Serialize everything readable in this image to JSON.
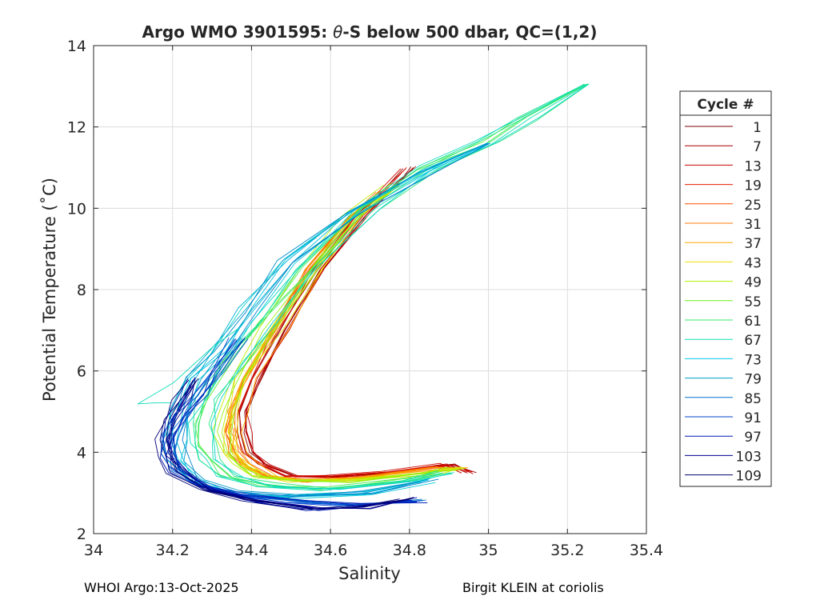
{
  "chart_data": {
    "type": "line",
    "title": "Argo WMO 3901595: θ-S below 500 dbar,  QC=(1,2)",
    "title_parts": {
      "pre": "Argo WMO 3901595: ",
      "theta": "θ",
      "post": "-S below 500 dbar,  QC=(1,2)"
    },
    "xlabel": "Salinity",
    "ylabel": "Potential Temperature (˚C)",
    "xlim": [
      34,
      35.4
    ],
    "ylim": [
      2,
      14
    ],
    "xticks": [
      34,
      34.2,
      34.4,
      34.6,
      34.8,
      35,
      35.2,
      35.4
    ],
    "xtick_labels": [
      "34",
      "34.2",
      "34.4",
      "34.6",
      "34.8",
      "35",
      "35.2",
      "35.4"
    ],
    "yticks": [
      2,
      4,
      6,
      8,
      10,
      12,
      14
    ],
    "ytick_labels": [
      "2",
      "4",
      "6",
      "8",
      "10",
      "12",
      "14"
    ],
    "grid": true,
    "legend": {
      "title": "Cycle #",
      "placement": "outside-right",
      "entries": [
        {
          "label": "1",
          "color": "#7f0000"
        },
        {
          "label": "7",
          "color": "#a50000"
        },
        {
          "label": "13",
          "color": "#c80000"
        },
        {
          "label": "19",
          "color": "#e61e00"
        },
        {
          "label": "25",
          "color": "#ff4a00"
        },
        {
          "label": "31",
          "color": "#ff7a00"
        },
        {
          "label": "37",
          "color": "#ffaa00"
        },
        {
          "label": "43",
          "color": "#f0e000"
        },
        {
          "label": "49",
          "color": "#b4f000"
        },
        {
          "label": "55",
          "color": "#70f020"
        },
        {
          "label": "61",
          "color": "#30e870"
        },
        {
          "label": "67",
          "color": "#10e0b0"
        },
        {
          "label": "73",
          "color": "#00c8e8"
        },
        {
          "label": "79",
          "color": "#00a0c8"
        },
        {
          "label": "85",
          "color": "#0070d0"
        },
        {
          "label": "91",
          "color": "#0040d0"
        },
        {
          "label": "97",
          "color": "#0018b0"
        },
        {
          "label": "103",
          "color": "#000090"
        },
        {
          "label": "109",
          "color": "#000070"
        }
      ]
    },
    "series": [
      {
        "group": "red",
        "points": [
          [
            34.95,
            3.5
          ],
          [
            34.9,
            3.7
          ],
          [
            34.75,
            3.5
          ],
          [
            34.6,
            3.4
          ],
          [
            34.5,
            3.4
          ],
          [
            34.43,
            3.7
          ],
          [
            34.395,
            4.0
          ],
          [
            34.38,
            4.5
          ],
          [
            34.38,
            5.0
          ],
          [
            34.41,
            5.8
          ],
          [
            34.48,
            7.0
          ],
          [
            34.57,
            8.5
          ],
          [
            34.68,
            9.8
          ],
          [
            34.75,
            10.5
          ],
          [
            34.8,
            11.0
          ]
        ]
      },
      {
        "group": "orange",
        "points": [
          [
            34.94,
            3.6
          ],
          [
            34.88,
            3.6
          ],
          [
            34.7,
            3.4
          ],
          [
            34.55,
            3.3
          ],
          [
            34.45,
            3.4
          ],
          [
            34.4,
            3.7
          ],
          [
            34.37,
            4.0
          ],
          [
            34.36,
            4.5
          ],
          [
            34.365,
            5.0
          ],
          [
            34.4,
            5.8
          ],
          [
            34.47,
            7.0
          ],
          [
            34.56,
            8.5
          ],
          [
            34.67,
            9.8
          ],
          [
            34.74,
            10.4
          ]
        ]
      },
      {
        "group": "yellow",
        "points": [
          [
            34.92,
            3.6
          ],
          [
            34.85,
            3.5
          ],
          [
            34.65,
            3.3
          ],
          [
            34.5,
            3.3
          ],
          [
            34.42,
            3.4
          ],
          [
            34.37,
            3.7
          ],
          [
            34.345,
            4.0
          ],
          [
            34.335,
            4.5
          ],
          [
            34.34,
            5.0
          ],
          [
            34.37,
            5.8
          ],
          [
            34.45,
            7.0
          ],
          [
            34.55,
            8.5
          ],
          [
            34.66,
            9.8
          ],
          [
            34.76,
            10.6
          ]
        ]
      },
      {
        "group": "green",
        "points": [
          [
            34.9,
            3.5
          ],
          [
            34.8,
            3.3
          ],
          [
            34.6,
            3.1
          ],
          [
            34.45,
            3.2
          ],
          [
            34.35,
            3.4
          ],
          [
            34.3,
            3.8
          ],
          [
            34.28,
            4.2
          ],
          [
            34.28,
            4.7
          ],
          [
            34.3,
            5.3
          ],
          [
            34.36,
            6.2
          ],
          [
            34.44,
            7.2
          ],
          [
            34.55,
            8.5
          ],
          [
            34.7,
            10.0
          ],
          [
            34.85,
            11.0
          ],
          [
            35.0,
            11.6
          ],
          [
            35.1,
            12.2
          ],
          [
            35.25,
            13.05
          ]
        ]
      },
      {
        "group": "cyan",
        "points": [
          [
            34.85,
            3.3
          ],
          [
            34.7,
            3.0
          ],
          [
            34.5,
            2.9
          ],
          [
            34.35,
            3.0
          ],
          [
            34.26,
            3.3
          ],
          [
            34.22,
            3.8
          ],
          [
            34.21,
            4.3
          ],
          [
            34.22,
            5.0
          ],
          [
            34.26,
            5.8
          ],
          [
            34.32,
            6.5
          ],
          [
            34.4,
            7.5
          ],
          [
            34.5,
            8.7
          ],
          [
            34.66,
            9.9
          ],
          [
            34.85,
            10.9
          ],
          [
            35.0,
            11.6
          ]
        ]
      },
      {
        "group": "cyan-branch",
        "points": [
          [
            34.2,
            5.2
          ],
          [
            34.15,
            5.2
          ],
          [
            34.11,
            5.2
          ],
          [
            34.2,
            5.7
          ],
          [
            34.3,
            6.6
          ],
          [
            34.37,
            7.05
          ]
        ]
      },
      {
        "group": "blue",
        "points": [
          [
            34.82,
            2.8
          ],
          [
            34.65,
            2.7
          ],
          [
            34.5,
            2.8
          ],
          [
            34.36,
            2.95
          ],
          [
            34.26,
            3.2
          ],
          [
            34.2,
            3.6
          ],
          [
            34.18,
            4.0
          ],
          [
            34.19,
            4.4
          ],
          [
            34.22,
            4.9
          ],
          [
            34.26,
            5.4
          ],
          [
            34.3,
            6.0
          ],
          [
            34.36,
            6.8
          ]
        ]
      },
      {
        "group": "navy",
        "points": [
          [
            34.8,
            2.85
          ],
          [
            34.68,
            2.65
          ],
          [
            34.55,
            2.6
          ],
          [
            34.4,
            2.8
          ],
          [
            34.28,
            3.1
          ],
          [
            34.21,
            3.5
          ],
          [
            34.18,
            3.9
          ],
          [
            34.175,
            4.3
          ],
          [
            34.19,
            4.8
          ],
          [
            34.22,
            5.3
          ],
          [
            34.25,
            5.8
          ]
        ]
      }
    ]
  },
  "footer": {
    "left": "WHOI Argo:13-Oct-2025",
    "right": "Birgit KLEIN at coriolis"
  }
}
